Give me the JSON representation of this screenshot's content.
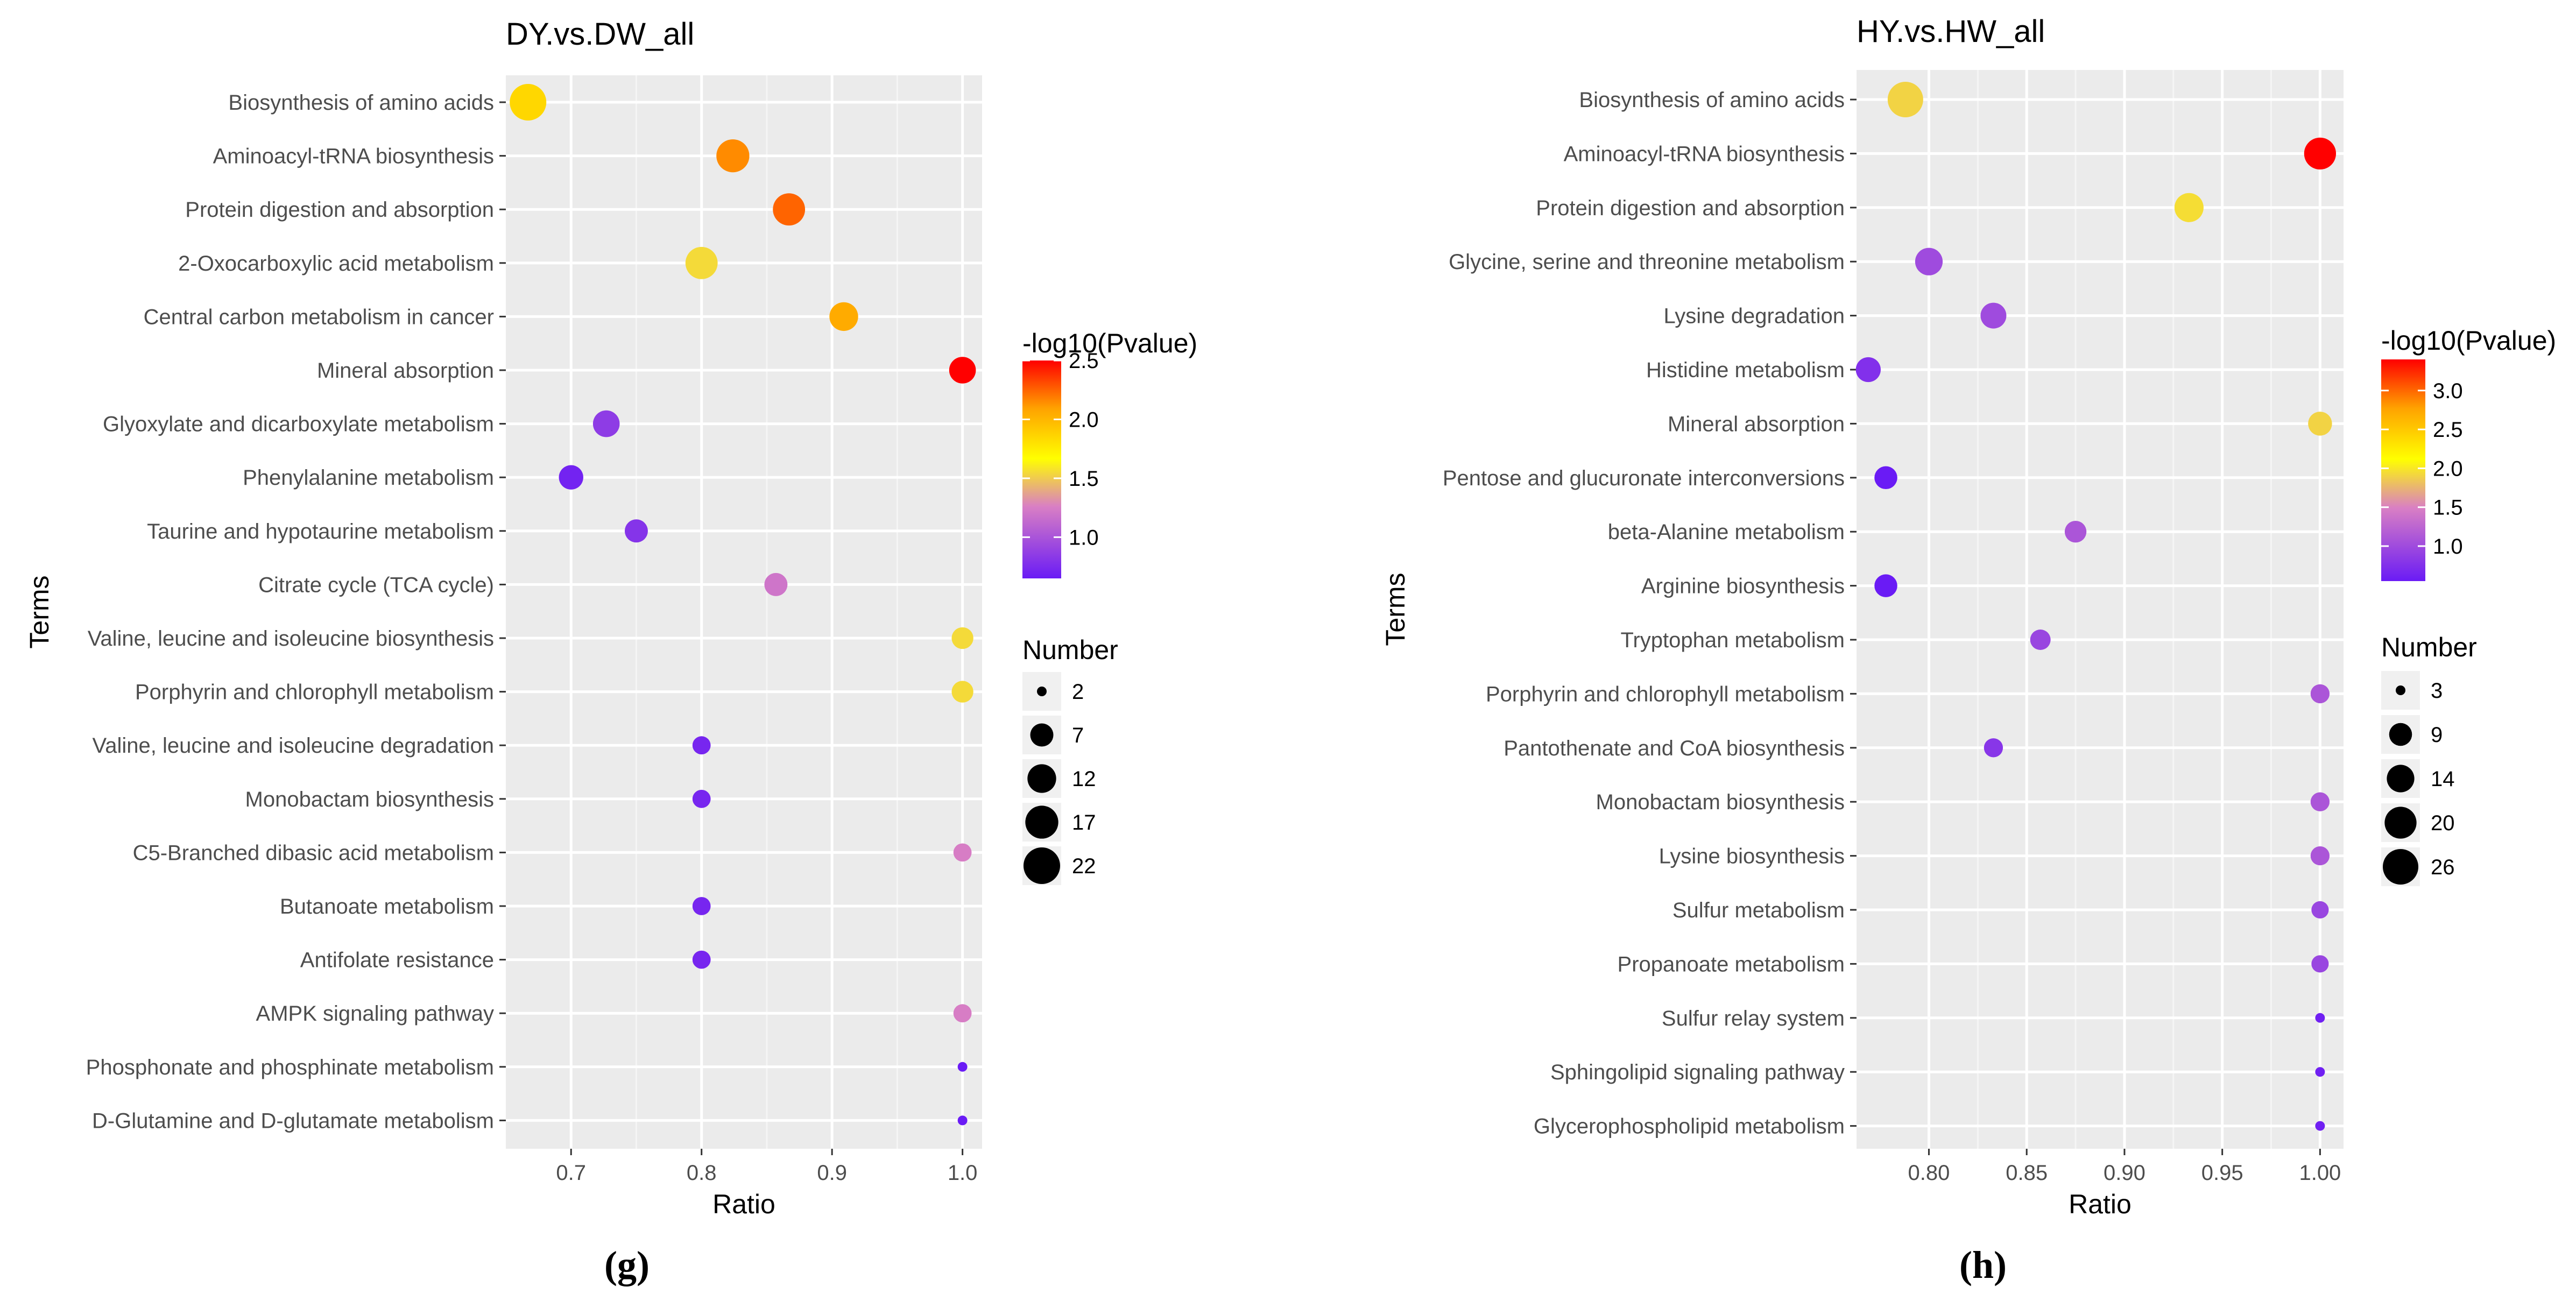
{
  "chart_data": [
    {
      "type": "scatter",
      "panel_label": "(g)",
      "title": "DY.vs.DW_all",
      "xlabel": "Ratio",
      "ylabel": "Terms",
      "xlim": [
        0.65,
        1.015
      ],
      "xticks": [
        0.7,
        0.8,
        0.9,
        1.0
      ],
      "xtick_labels": [
        "0.7",
        "0.8",
        "0.9",
        "1.0"
      ],
      "color_legend": {
        "title": "-log10(Pvalue)",
        "min": 0.65,
        "max": 2.5,
        "ticks": [
          1.0,
          1.5,
          2.0,
          2.5
        ],
        "tick_labels": [
          "1.0",
          "1.5",
          "2.0",
          "2.5"
        ]
      },
      "size_legend": {
        "title": "Number",
        "range": [
          2,
          22
        ],
        "values": [
          2,
          7,
          12,
          17,
          22
        ]
      },
      "points": [
        {
          "term": "Biosynthesis of amino acids",
          "ratio": 0.667,
          "pvalue": 1.85,
          "number": 22
        },
        {
          "term": "Aminoacyl-tRNA biosynthesis",
          "ratio": 0.824,
          "pvalue": 2.15,
          "number": 17
        },
        {
          "term": "Protein digestion and absorption",
          "ratio": 0.867,
          "pvalue": 2.25,
          "number": 16
        },
        {
          "term": "2-Oxocarboxylic acid metabolism",
          "ratio": 0.8,
          "pvalue": 1.55,
          "number": 16
        },
        {
          "term": "Central carbon metabolism in cancer",
          "ratio": 0.909,
          "pvalue": 2.05,
          "number": 12
        },
        {
          "term": "Mineral absorption",
          "ratio": 1.0,
          "pvalue": 2.5,
          "number": 10
        },
        {
          "term": "Glyoxylate and dicarboxylate metabolism",
          "ratio": 0.727,
          "pvalue": 0.85,
          "number": 10
        },
        {
          "term": "Phenylalanine metabolism",
          "ratio": 0.7,
          "pvalue": 0.7,
          "number": 8
        },
        {
          "term": "Taurine and hypotaurine metabolism",
          "ratio": 0.75,
          "pvalue": 0.8,
          "number": 7
        },
        {
          "term": "Citrate cycle (TCA cycle)",
          "ratio": 0.857,
          "pvalue": 1.2,
          "number": 7
        },
        {
          "term": "Valine, leucine and isoleucine biosynthesis",
          "ratio": 1.0,
          "pvalue": 1.55,
          "number": 6
        },
        {
          "term": "Porphyrin and chlorophyll metabolism",
          "ratio": 1.0,
          "pvalue": 1.55,
          "number": 6
        },
        {
          "term": "Valine, leucine and isoleucine degradation",
          "ratio": 0.8,
          "pvalue": 0.72,
          "number": 4
        },
        {
          "term": "Monobactam biosynthesis",
          "ratio": 0.8,
          "pvalue": 0.72,
          "number": 4
        },
        {
          "term": "C5-Branched dibasic acid metabolism",
          "ratio": 1.0,
          "pvalue": 1.25,
          "number": 4
        },
        {
          "term": "Butanoate metabolism",
          "ratio": 0.8,
          "pvalue": 0.72,
          "number": 4
        },
        {
          "term": "Antifolate resistance",
          "ratio": 0.8,
          "pvalue": 0.72,
          "number": 4
        },
        {
          "term": "AMPK signaling pathway",
          "ratio": 1.0,
          "pvalue": 1.25,
          "number": 4
        },
        {
          "term": "Phosphonate and phosphinate metabolism",
          "ratio": 1.0,
          "pvalue": 0.6,
          "number": 2
        },
        {
          "term": "D-Glutamine and D-glutamate metabolism",
          "ratio": 1.0,
          "pvalue": 0.6,
          "number": 2
        }
      ]
    },
    {
      "type": "scatter",
      "panel_label": "(h)",
      "title": "HY.vs.HW_all",
      "xlabel": "Ratio",
      "ylabel": "Terms",
      "xlim": [
        0.763,
        1.012
      ],
      "xticks": [
        0.8,
        0.85,
        0.9,
        0.95,
        1.0
      ],
      "xtick_labels": [
        "0.80",
        "0.85",
        "0.90",
        "0.95",
        "1.00"
      ],
      "color_legend": {
        "title": "-log10(Pvalue)",
        "min": 0.55,
        "max": 3.4,
        "ticks": [
          1.0,
          1.5,
          2.0,
          2.5,
          3.0
        ],
        "tick_labels": [
          "1.0",
          "1.5",
          "2.0",
          "2.5",
          "3.0"
        ]
      },
      "size_legend": {
        "title": "Number",
        "range": [
          3,
          26
        ],
        "values": [
          3,
          9,
          14,
          20,
          26
        ]
      },
      "points": [
        {
          "term": "Biosynthesis of amino acids",
          "ratio": 0.788,
          "pvalue": 1.9,
          "number": 26
        },
        {
          "term": "Aminoacyl-tRNA biosynthesis",
          "ratio": 1.0,
          "pvalue": 3.4,
          "number": 20
        },
        {
          "term": "Protein digestion and absorption",
          "ratio": 0.933,
          "pvalue": 1.95,
          "number": 16
        },
        {
          "term": "Glycine, serine and threonine metabolism",
          "ratio": 0.8,
          "pvalue": 1.0,
          "number": 14
        },
        {
          "term": "Lysine degradation",
          "ratio": 0.833,
          "pvalue": 1.0,
          "number": 12
        },
        {
          "term": "Histidine metabolism",
          "ratio": 0.769,
          "pvalue": 0.75,
          "number": 11
        },
        {
          "term": "Mineral absorption",
          "ratio": 1.0,
          "pvalue": 1.9,
          "number": 10
        },
        {
          "term": "Pentose and glucuronate interconversions",
          "ratio": 0.778,
          "pvalue": 0.55,
          "number": 9
        },
        {
          "term": "beta-Alanine metabolism",
          "ratio": 0.875,
          "pvalue": 1.1,
          "number": 8
        },
        {
          "term": "Arginine biosynthesis",
          "ratio": 0.778,
          "pvalue": 0.55,
          "number": 9
        },
        {
          "term": "Tryptophan metabolism",
          "ratio": 0.857,
          "pvalue": 0.95,
          "number": 7
        },
        {
          "term": "Porphyrin and chlorophyll metabolism",
          "ratio": 1.0,
          "pvalue": 1.1,
          "number": 6
        },
        {
          "term": "Pantothenate and CoA biosynthesis",
          "ratio": 0.833,
          "pvalue": 0.8,
          "number": 6
        },
        {
          "term": "Monobactam biosynthesis",
          "ratio": 1.0,
          "pvalue": 1.1,
          "number": 6
        },
        {
          "term": "Lysine biosynthesis",
          "ratio": 1.0,
          "pvalue": 1.1,
          "number": 6
        },
        {
          "term": "Sulfur metabolism",
          "ratio": 1.0,
          "pvalue": 0.95,
          "number": 5
        },
        {
          "term": "Propanoate metabolism",
          "ratio": 1.0,
          "pvalue": 0.95,
          "number": 5
        },
        {
          "term": "Sulfur relay system",
          "ratio": 1.0,
          "pvalue": 0.6,
          "number": 3
        },
        {
          "term": "Sphingolipid signaling pathway",
          "ratio": 1.0,
          "pvalue": 0.6,
          "number": 3
        },
        {
          "term": "Glycerophospholipid metabolism",
          "ratio": 1.0,
          "pvalue": 0.6,
          "number": 3
        }
      ]
    }
  ]
}
